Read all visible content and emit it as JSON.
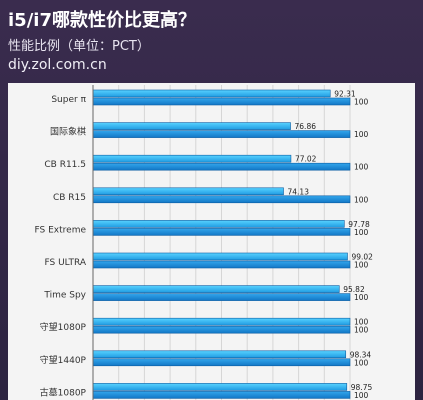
{
  "chart_data": {
    "type": "bar",
    "orientation": "horizontal",
    "title": "i5/i7哪款性价比更高？",
    "subtitle": "性能比例（单位：PCT）",
    "source": "diy.zol.com.cn",
    "categories": [
      "Super π",
      "国际象棋",
      "CB R11.5",
      "CB R15",
      "FS Extreme",
      "FS ULTRA",
      "Time Spy",
      "守望1080P",
      "守望1440P",
      "古墓1080P"
    ],
    "series": [
      {
        "values": [
          92.31,
          76.86,
          77.02,
          74.13,
          97.78,
          99.02,
          95.82,
          100,
          98.34,
          98.75
        ]
      },
      {
        "values": [
          100,
          100,
          100,
          100,
          100,
          100,
          100,
          100,
          100,
          100
        ]
      }
    ],
    "xlim": [
      0,
      100
    ],
    "grid": true,
    "colors": [
      "#3fb8f5",
      "#1a86d6"
    ]
  }
}
